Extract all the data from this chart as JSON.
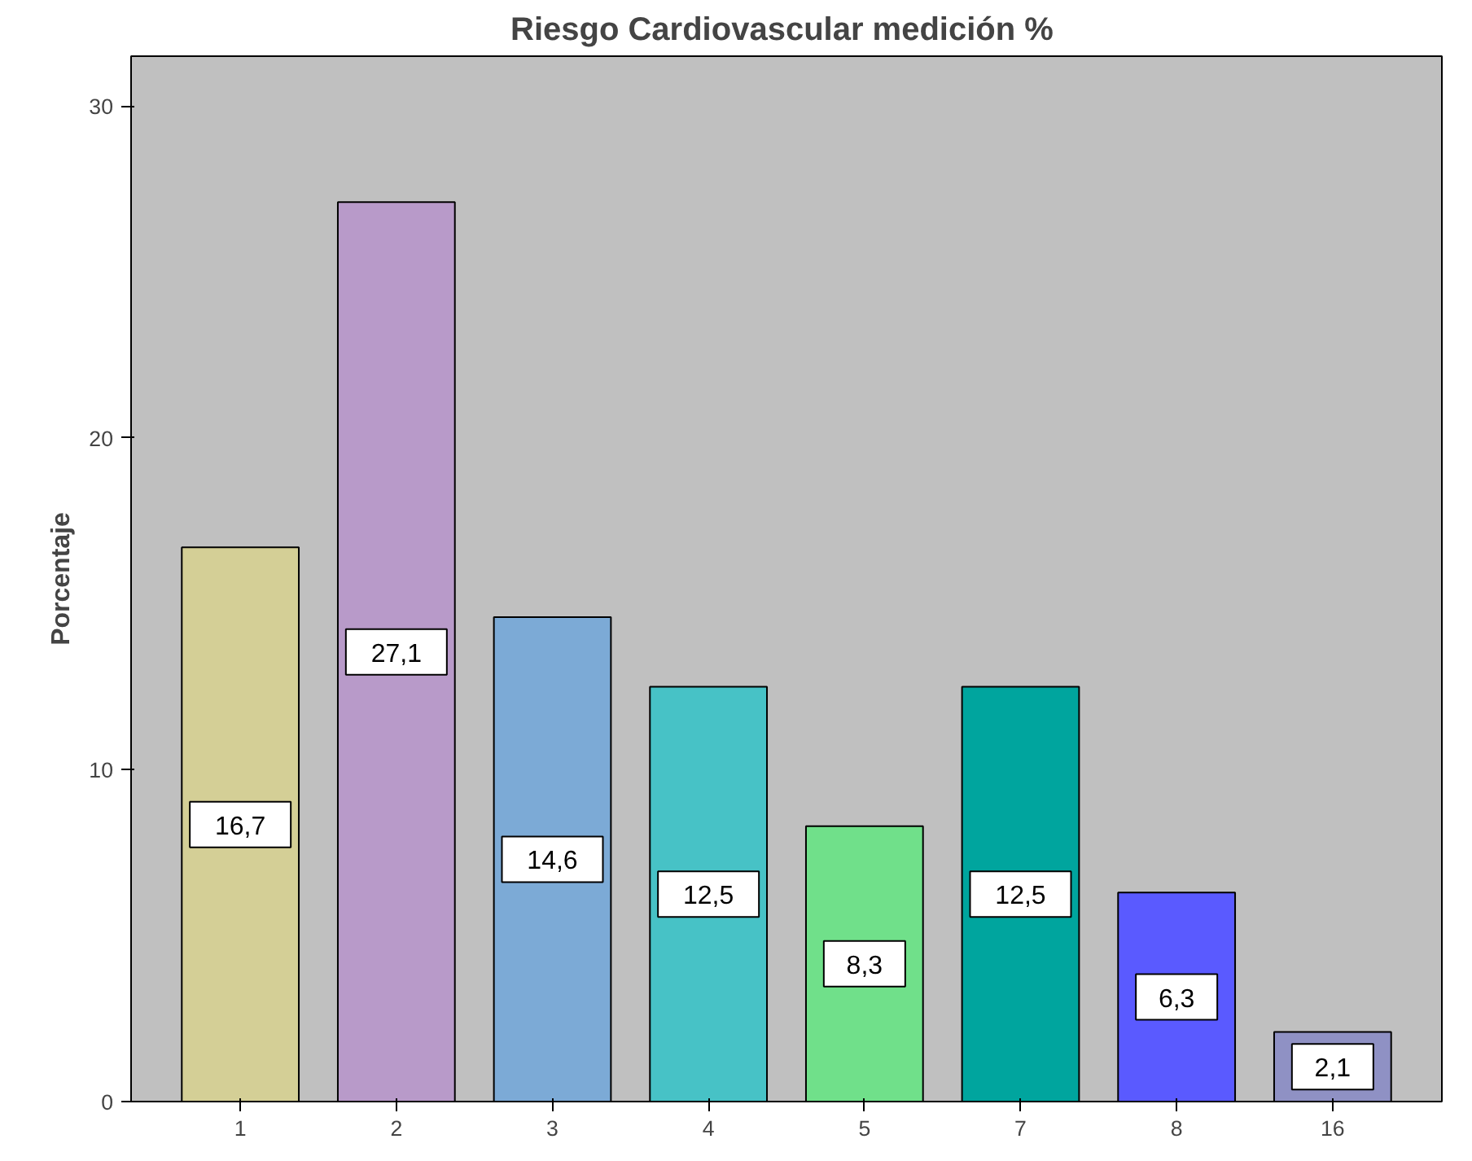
{
  "chart_data": {
    "type": "bar",
    "title": "Riesgo Cardiovascular  medición %",
    "ylabel": "Porcentaje",
    "categories": [
      "1",
      "2",
      "3",
      "4",
      "5",
      "7",
      "8",
      "16"
    ],
    "values": [
      16.7,
      27.1,
      14.6,
      12.5,
      8.3,
      12.5,
      6.3,
      2.1
    ],
    "value_labels": [
      "16,7",
      "27,1",
      "14,6",
      "12,5",
      "8,3",
      "12,5",
      "6,3",
      "2,1"
    ],
    "colors": [
      "#d4cf96",
      "#b89ac9",
      "#7caad6",
      "#47c2c6",
      "#70e08a",
      "#00a59e",
      "#5a5aff",
      "#8f91c4"
    ],
    "ylim": [
      0,
      31.5
    ],
    "yticks": [
      0,
      10,
      20,
      30
    ],
    "grid": false
  }
}
